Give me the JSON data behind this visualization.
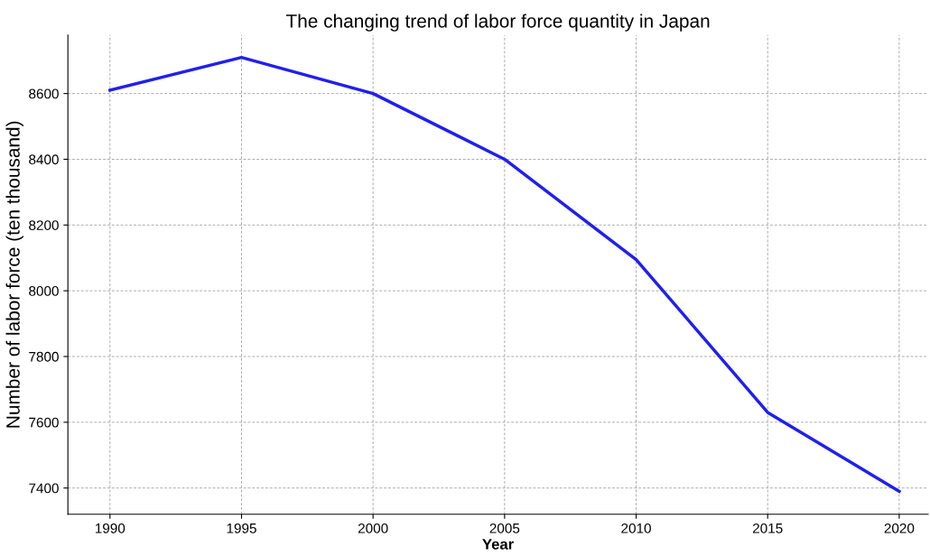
{
  "chart_data": {
    "type": "line",
    "title": "The changing trend of labor force quantity in Japan",
    "xlabel": "Year",
    "ylabel": "Number of labor force (ten thousand)",
    "x": [
      1990,
      1995,
      2000,
      2005,
      2010,
      2015,
      2020
    ],
    "series": [
      {
        "color": "#2020ee",
        "values": [
          8610,
          8710,
          8600,
          8400,
          8095,
          7630,
          7390
        ]
      }
    ],
    "xlim": [
      1988.4,
      2021.1
    ],
    "xticks": [
      1990,
      1995,
      2000,
      2005,
      2010,
      2015,
      2020
    ],
    "ylim": [
      7320,
      8778
    ],
    "yticks": [
      7400,
      7600,
      7800,
      8000,
      8200,
      8400,
      8600
    ],
    "grid": true,
    "line_style": "solid",
    "marker": "none"
  }
}
